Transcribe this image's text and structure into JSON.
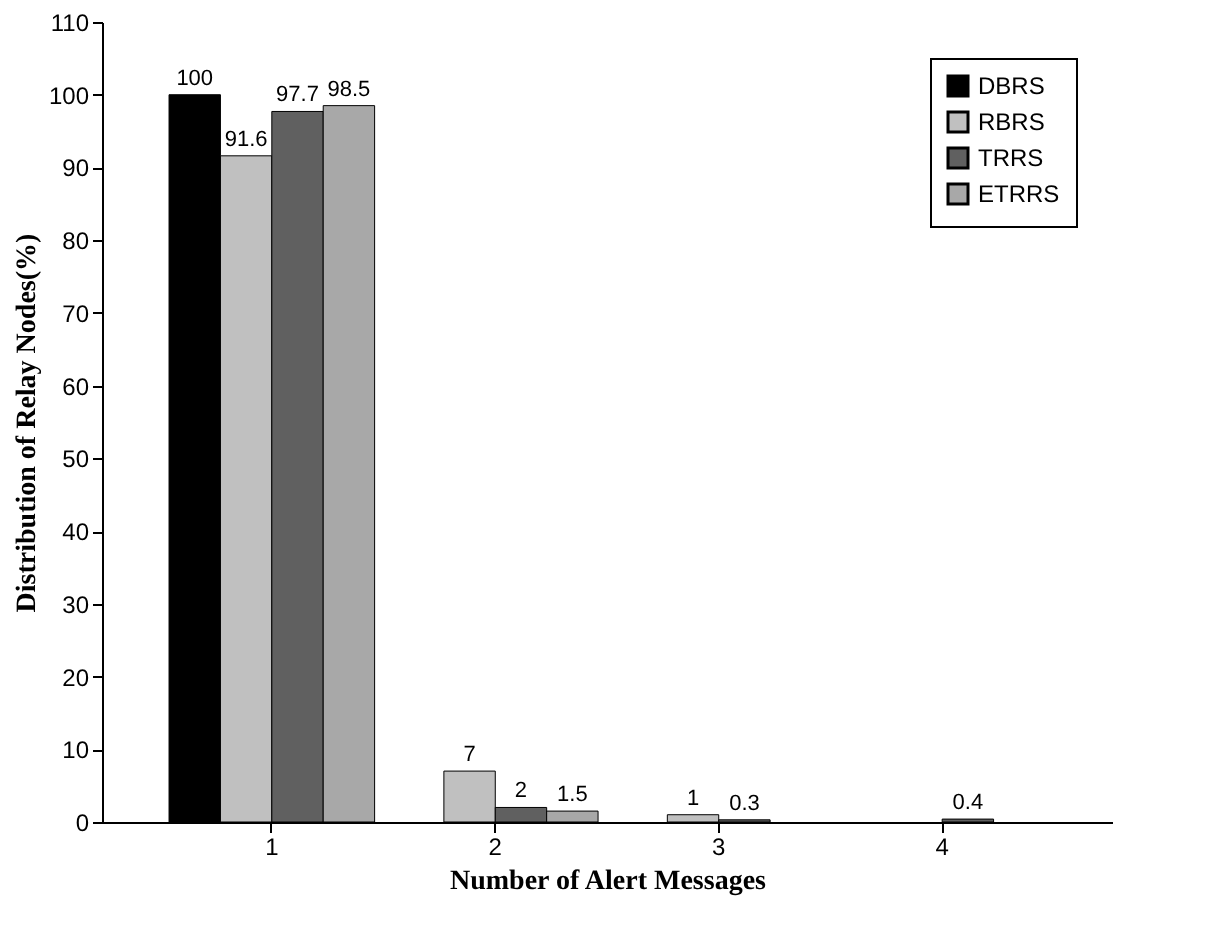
{
  "chart_data": {
    "type": "bar",
    "xlabel": "Number of Alert Messages",
    "ylabel": "Distribution of Relay Nodes(%)",
    "categories": [
      "1",
      "2",
      "3",
      "4"
    ],
    "series": [
      {
        "name": "DBRS",
        "color": "#000000",
        "values": [
          100,
          null,
          null,
          null
        ],
        "value_labels": [
          "100",
          null,
          null,
          null
        ]
      },
      {
        "name": "RBRS",
        "color": "#c0c0c0",
        "values": [
          91.6,
          7,
          1,
          null
        ],
        "value_labels": [
          "91.6",
          "7",
          "1",
          null
        ]
      },
      {
        "name": "TRRS",
        "color": "#606060",
        "values": [
          97.7,
          2,
          0.3,
          0.4
        ],
        "value_labels": [
          "97.7",
          "2",
          "0.3",
          "0.4"
        ]
      },
      {
        "name": "ETRRS",
        "color": "#a8a8a8",
        "values": [
          98.5,
          1.5,
          null,
          null
        ],
        "value_labels": [
          "98.5",
          "1.5",
          null,
          null
        ]
      }
    ],
    "ylim": [
      0,
      110
    ],
    "yticks": [
      0,
      10,
      20,
      30,
      40,
      50,
      60,
      70,
      80,
      90,
      100,
      110
    ],
    "grid": false,
    "legend": "top right"
  }
}
